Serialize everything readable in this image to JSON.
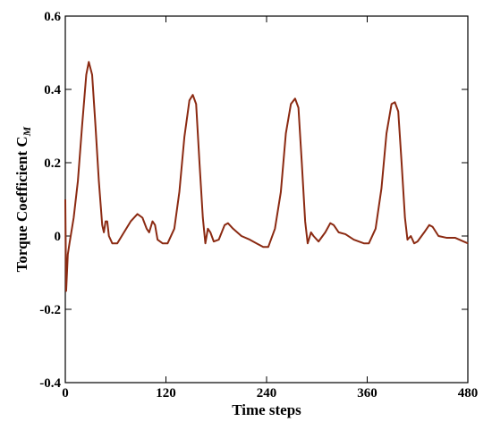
{
  "chart_data": {
    "type": "line",
    "xlabel": "Time steps",
    "ylabel": "Torque Coefficient C",
    "ylabel_subscript": "M",
    "xlim": [
      0,
      480
    ],
    "xticks": [
      0,
      120,
      240,
      360,
      480
    ],
    "ylim": [
      -0.4,
      0.6
    ],
    "yticks": [
      -0.4,
      -0.2,
      0,
      0.2,
      0.4,
      0.6
    ],
    "series": [
      {
        "color": "#8b2a12",
        "x": [
          0,
          1,
          3,
          5,
          10,
          15,
          20,
          25,
          28,
          32,
          36,
          40,
          44,
          46,
          48,
          50,
          52,
          56,
          62,
          70,
          78,
          86,
          92,
          97,
          100,
          104,
          107,
          110,
          116,
          122,
          130,
          136,
          142,
          148,
          152,
          156,
          160,
          164,
          167,
          170,
          173,
          177,
          183,
          190,
          194,
          200,
          210,
          220,
          228,
          236,
          242,
          250,
          257,
          263,
          269,
          274,
          278,
          282,
          286,
          289,
          293,
          296,
          302,
          310,
          316,
          320,
          326,
          334,
          344,
          356,
          362,
          370,
          377,
          383,
          389,
          393,
          397,
          401,
          405,
          408,
          412,
          416,
          420,
          428,
          434,
          438,
          445,
          455,
          465,
          475,
          480
        ],
        "values": [
          0.1,
          -0.15,
          -0.05,
          -0.02,
          0.05,
          0.15,
          0.3,
          0.44,
          0.475,
          0.44,
          0.3,
          0.15,
          0.03,
          0.01,
          0.04,
          0.04,
          0.0,
          -0.02,
          -0.02,
          0.01,
          0.04,
          0.06,
          0.05,
          0.02,
          0.01,
          0.04,
          0.03,
          -0.01,
          -0.02,
          -0.02,
          0.02,
          0.12,
          0.27,
          0.37,
          0.385,
          0.36,
          0.2,
          0.05,
          -0.02,
          0.02,
          0.01,
          -0.015,
          -0.01,
          0.03,
          0.035,
          0.02,
          0.0,
          -0.01,
          -0.02,
          -0.03,
          -0.03,
          0.02,
          0.12,
          0.28,
          0.36,
          0.375,
          0.35,
          0.2,
          0.04,
          -0.02,
          0.01,
          0.0,
          -0.015,
          0.01,
          0.035,
          0.03,
          0.01,
          0.005,
          -0.01,
          -0.02,
          -0.02,
          0.02,
          0.13,
          0.28,
          0.36,
          0.365,
          0.34,
          0.2,
          0.05,
          -0.01,
          0.0,
          -0.02,
          -0.015,
          0.01,
          0.03,
          0.025,
          0.0,
          -0.005,
          -0.005,
          -0.015,
          -0.02
        ]
      }
    ]
  }
}
